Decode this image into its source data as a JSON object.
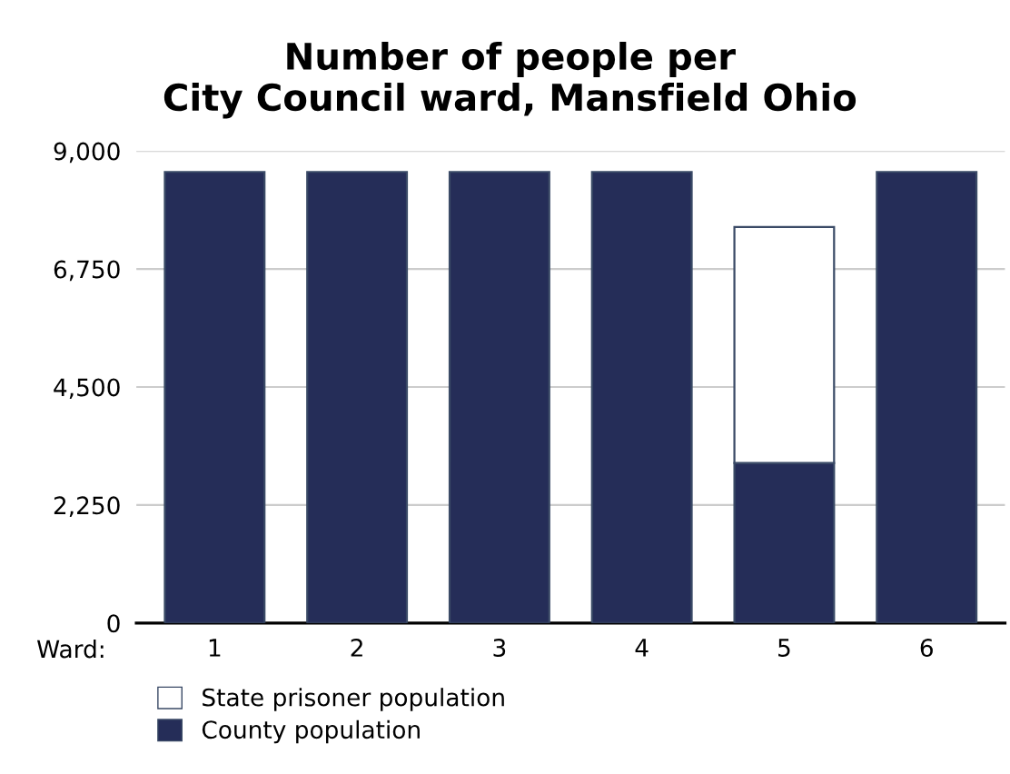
{
  "chart_data": {
    "type": "bar",
    "title": "Number of people per\nCity Council ward, Mansfield Ohio",
    "xlabel": "Ward:",
    "categories": [
      "1",
      "2",
      "3",
      "4",
      "5",
      "6"
    ],
    "stacked": true,
    "series": [
      {
        "name": "County population",
        "color": "#252d58",
        "values": [
          8600,
          8600,
          8600,
          8600,
          3050,
          8600
        ]
      },
      {
        "name": "State prisoner population",
        "color": "#ffffff",
        "values": [
          null,
          null,
          null,
          null,
          4500,
          null
        ]
      }
    ],
    "ylim": [
      0,
      9000
    ],
    "yticks": [
      {
        "value": 0,
        "label": "0"
      },
      {
        "value": 2250,
        "label": "2,250"
      },
      {
        "value": 4500,
        "label": "4,500"
      },
      {
        "value": 6750,
        "label": "6,750"
      },
      {
        "value": 9000,
        "label": "9,000"
      }
    ],
    "grid": "y",
    "legend": "bottom left"
  }
}
